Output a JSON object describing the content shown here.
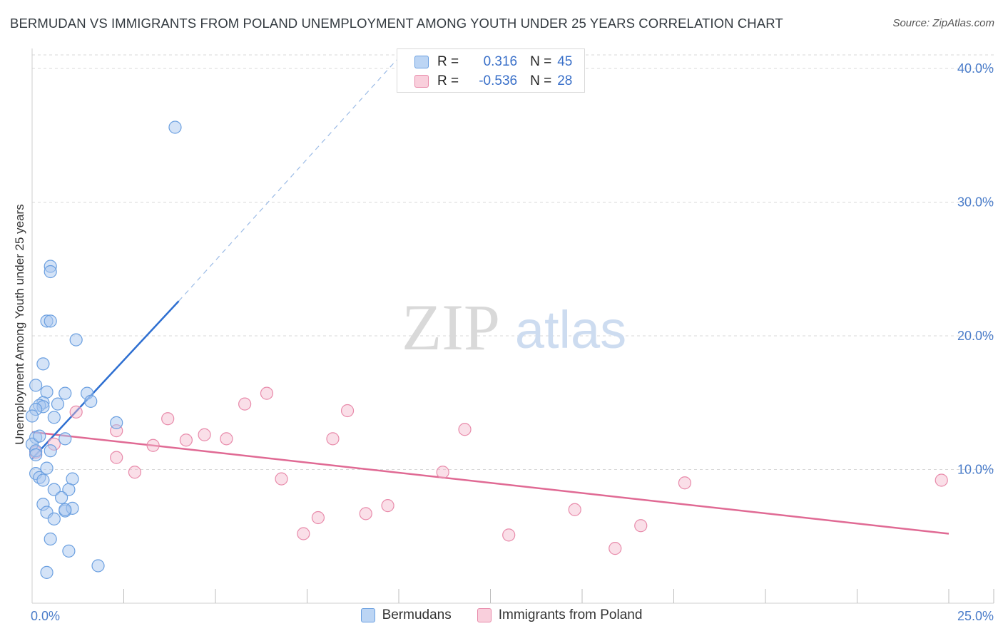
{
  "header": {
    "title": "BERMUDAN VS IMMIGRANTS FROM POLAND UNEMPLOYMENT AMONG YOUTH UNDER 25 YEARS CORRELATION CHART",
    "source": "Source: ZipAtlas.com"
  },
  "watermark": {
    "zip": "ZIP",
    "atlas": "atlas"
  },
  "legend": {
    "rows": [
      {
        "r_label": "R =",
        "r_value": "0.316",
        "n_label": "N =",
        "n_value": "45"
      },
      {
        "r_label": "R =",
        "r_value": "-0.536",
        "n_label": "N =",
        "n_value": "28"
      }
    ],
    "series_names": [
      "Bermudans",
      "Immigrants from Poland"
    ]
  },
  "colors": {
    "blue_fill": "#a9c8f0",
    "blue_stroke": "#6a9fe0",
    "blue_line": "#2e6fd1",
    "pink_fill": "#f5b8cc",
    "pink_stroke": "#e88aaa",
    "pink_line": "#e06a94",
    "axis_text": "#4a7cc9",
    "grid": "#d8d8d8"
  },
  "chart_data": {
    "type": "scatter",
    "title": "BERMUDAN VS IMMIGRANTS FROM POLAND UNEMPLOYMENT AMONG YOUTH UNDER 25 YEARS CORRELATION CHART",
    "xlabel": "",
    "ylabel": "Unemployment Among Youth under 25 years",
    "xlim": [
      0,
      26
    ],
    "ylim": [
      0,
      40.5
    ],
    "x_tick_labels": [
      {
        "value": 0,
        "label": "0.0%"
      },
      {
        "value": 25,
        "label": "25.0%"
      }
    ],
    "x_minor_ticks": [
      2.5,
      5,
      7.5,
      10,
      12.5,
      15,
      17.5,
      20,
      22.5,
      25
    ],
    "y_ticks": [
      {
        "value": 10,
        "label": "10.0%"
      },
      {
        "value": 20,
        "label": "20.0%"
      },
      {
        "value": 30,
        "label": "30.0%"
      },
      {
        "value": 40,
        "label": "40.0%"
      }
    ],
    "series": [
      {
        "name": "Bermudans",
        "R": 0.316,
        "N": 45,
        "points": [
          [
            3.9,
            35.6
          ],
          [
            0.5,
            25.2
          ],
          [
            0.5,
            24.8
          ],
          [
            0.4,
            21.1
          ],
          [
            0.5,
            21.1
          ],
          [
            1.2,
            19.7
          ],
          [
            0.3,
            17.9
          ],
          [
            0.1,
            16.3
          ],
          [
            0.4,
            15.8
          ],
          [
            0.9,
            15.7
          ],
          [
            1.5,
            15.7
          ],
          [
            0.3,
            15.0
          ],
          [
            0.2,
            14.8
          ],
          [
            0.3,
            14.7
          ],
          [
            0.1,
            14.5
          ],
          [
            1.6,
            15.1
          ],
          [
            0.0,
            14.0
          ],
          [
            0.6,
            13.9
          ],
          [
            2.3,
            13.5
          ],
          [
            0.1,
            12.4
          ],
          [
            0.9,
            12.3
          ],
          [
            0.0,
            11.9
          ],
          [
            0.1,
            11.4
          ],
          [
            0.5,
            11.4
          ],
          [
            0.4,
            10.1
          ],
          [
            0.1,
            9.7
          ],
          [
            0.2,
            9.4
          ],
          [
            0.3,
            9.2
          ],
          [
            1.1,
            9.3
          ],
          [
            0.6,
            8.5
          ],
          [
            1.0,
            8.5
          ],
          [
            0.8,
            7.9
          ],
          [
            0.3,
            7.4
          ],
          [
            0.4,
            6.8
          ],
          [
            0.9,
            6.9
          ],
          [
            1.1,
            7.1
          ],
          [
            0.9,
            7.0
          ],
          [
            0.6,
            6.3
          ],
          [
            0.5,
            4.8
          ],
          [
            1.0,
            3.9
          ],
          [
            1.8,
            2.8
          ],
          [
            0.4,
            2.3
          ],
          [
            0.2,
            12.5
          ],
          [
            0.1,
            11.1
          ],
          [
            0.7,
            14.9
          ]
        ],
        "trend": {
          "x0": 0.0,
          "y0": 10.8,
          "x1": 4.0,
          "y1": 22.6
        },
        "trend_extension": {
          "x0": 4.0,
          "y0": 22.6,
          "x1": 10.0,
          "y1": 40.2
        }
      },
      {
        "name": "Immigrants from Poland",
        "R": -0.536,
        "N": 28,
        "points": [
          [
            0.1,
            11.3
          ],
          [
            0.6,
            11.9
          ],
          [
            1.2,
            14.3
          ],
          [
            2.3,
            12.9
          ],
          [
            2.3,
            10.9
          ],
          [
            2.8,
            9.8
          ],
          [
            3.3,
            11.8
          ],
          [
            3.7,
            13.8
          ],
          [
            4.2,
            12.2
          ],
          [
            4.7,
            12.6
          ],
          [
            5.3,
            12.3
          ],
          [
            5.8,
            14.9
          ],
          [
            6.4,
            15.7
          ],
          [
            6.8,
            9.3
          ],
          [
            7.4,
            5.2
          ],
          [
            7.8,
            6.4
          ],
          [
            8.2,
            12.3
          ],
          [
            8.6,
            14.4
          ],
          [
            9.1,
            6.7
          ],
          [
            9.7,
            7.3
          ],
          [
            11.2,
            9.8
          ],
          [
            11.8,
            13.0
          ],
          [
            13.0,
            5.1
          ],
          [
            14.8,
            7.0
          ],
          [
            15.9,
            4.1
          ],
          [
            16.6,
            5.8
          ],
          [
            17.8,
            9.0
          ],
          [
            24.8,
            9.2
          ]
        ],
        "trend": {
          "x0": 0.0,
          "y0": 12.8,
          "x1": 25.0,
          "y1": 5.2
        }
      }
    ]
  }
}
